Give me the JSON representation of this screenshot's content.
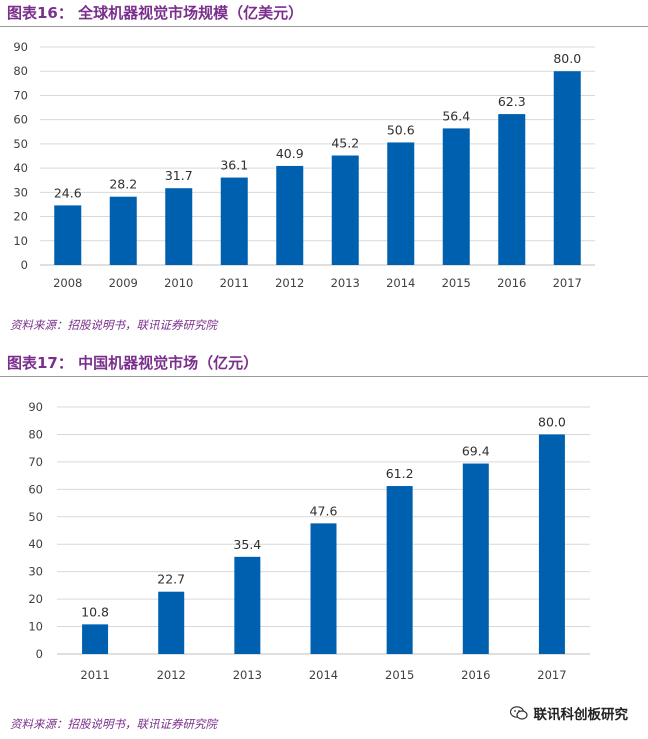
{
  "watermark": {
    "text": "联讯科创板研究",
    "icon": "wechat-icon"
  },
  "colors": {
    "bar": "#0060b0",
    "title": "#7a2f8c",
    "grid": "#d9d9d9"
  },
  "chart_data": [
    {
      "type": "bar",
      "title": "图表16：  全球机器视觉市场规模（亿美元）",
      "source": "资料来源：招股说明书，联讯证券研究院",
      "categories": [
        "2008",
        "2009",
        "2010",
        "2011",
        "2012",
        "2013",
        "2014",
        "2015",
        "2016",
        "2017"
      ],
      "values": [
        24.6,
        28.2,
        31.7,
        36.1,
        40.9,
        45.2,
        50.6,
        56.4,
        62.3,
        80.0
      ],
      "value_labels": [
        "24.6",
        "28.2",
        "31.7",
        "36.1",
        "40.9",
        "45.2",
        "50.6",
        "56.4",
        "62.3",
        "80.0"
      ],
      "yticks": [
        "0",
        "10",
        "20",
        "30",
        "40",
        "50",
        "60",
        "70",
        "80",
        "90"
      ],
      "ylim": [
        0,
        90
      ],
      "xlabel": "",
      "ylabel": "",
      "grid": true
    },
    {
      "type": "bar",
      "title": "图表17：  中国机器视觉市场（亿元）",
      "source": "资料来源：招股说明书，联讯证券研究院",
      "categories": [
        "2011",
        "2012",
        "2013",
        "2014",
        "2015",
        "2016",
        "2017"
      ],
      "values": [
        10.8,
        22.7,
        35.4,
        47.6,
        61.2,
        69.4,
        80.0
      ],
      "value_labels": [
        "10.8",
        "22.7",
        "35.4",
        "47.6",
        "61.2",
        "69.4",
        "80.0"
      ],
      "yticks": [
        "0",
        "10",
        "20",
        "30",
        "40",
        "50",
        "60",
        "70",
        "80",
        "90"
      ],
      "ylim": [
        0,
        90
      ],
      "xlabel": "",
      "ylabel": "",
      "grid": true
    }
  ]
}
